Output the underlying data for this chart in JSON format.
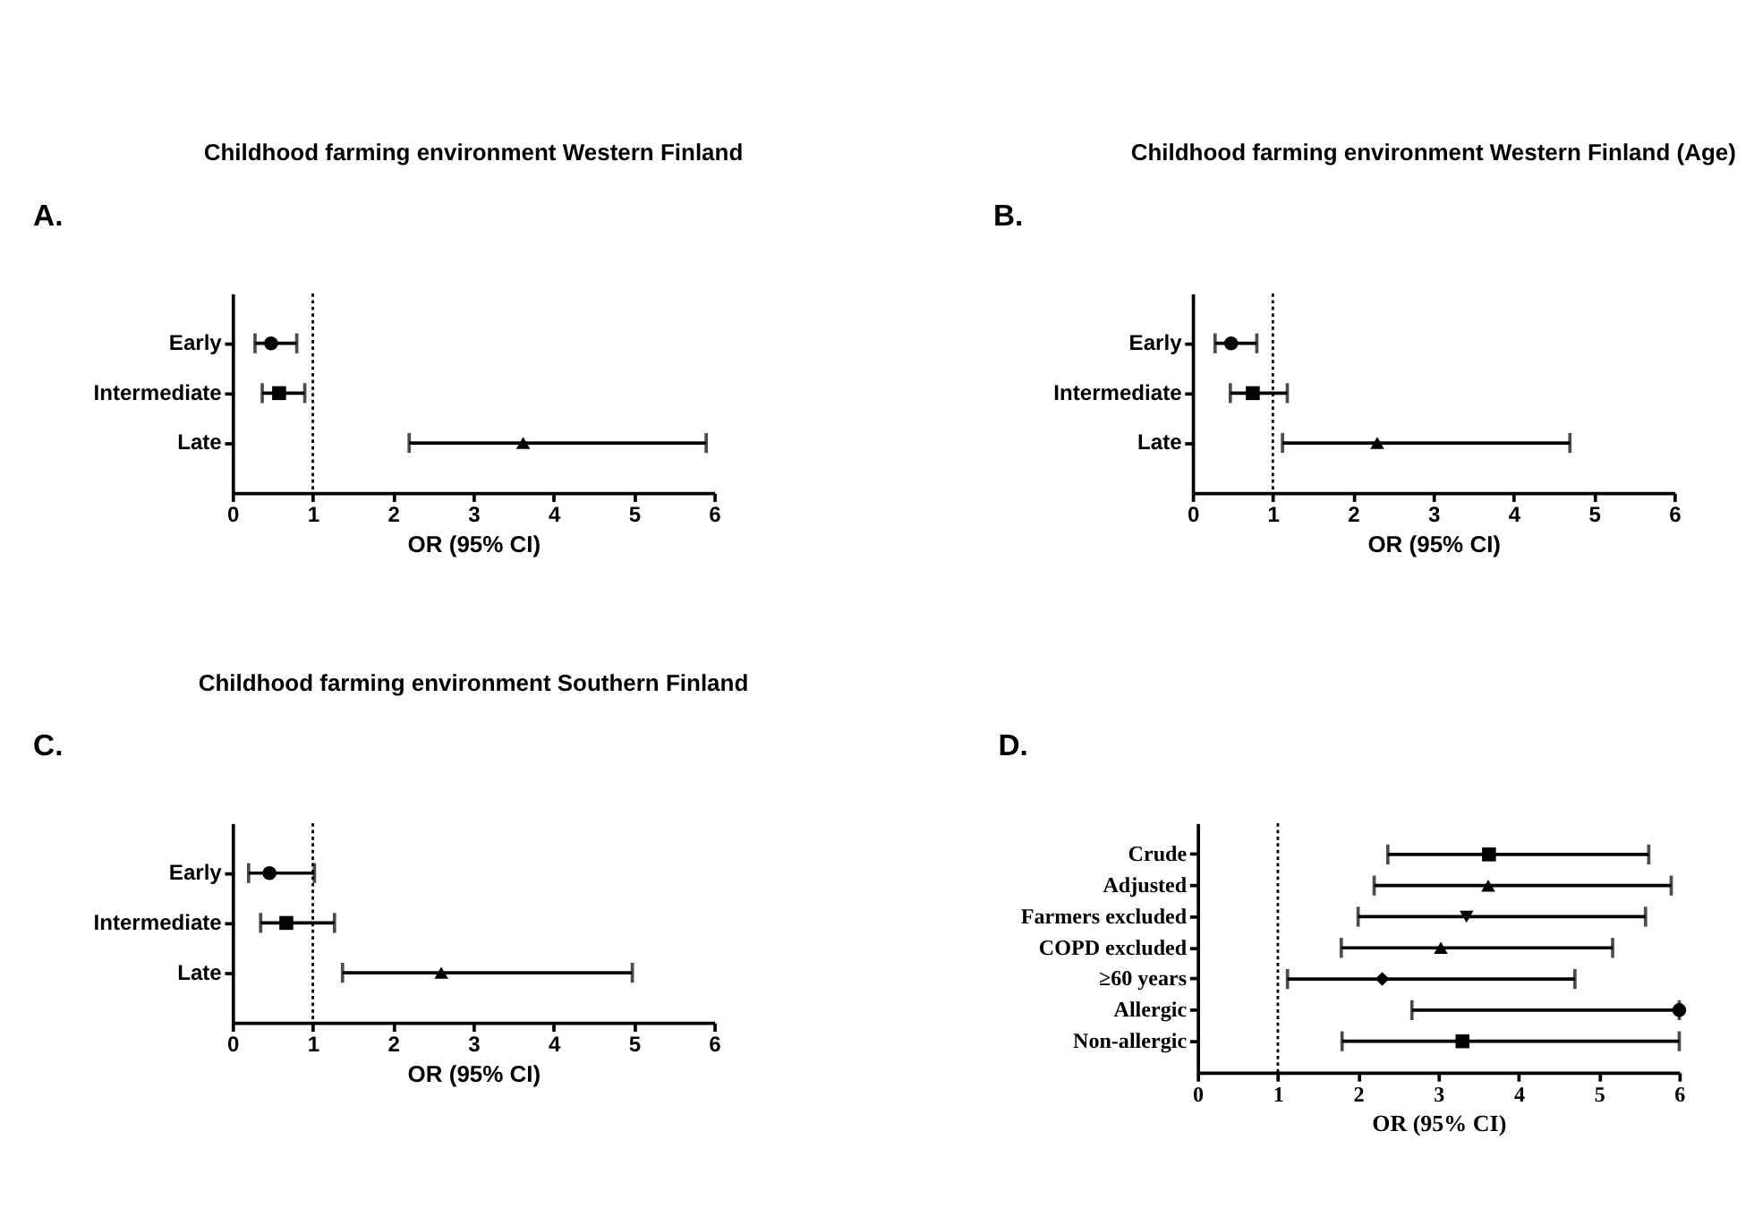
{
  "chart_data": [
    {
      "type": "scatter",
      "orientation": "horizontal",
      "title": "Childhood farming environment Western Finland",
      "xlabel": "OR (95% CI)",
      "annotations": [
        "A."
      ],
      "categories": [
        "Early",
        "Intermediate",
        "Late"
      ],
      "xlim": [
        0,
        6
      ],
      "xticks": [
        0,
        1,
        2,
        3,
        4,
        5,
        6
      ],
      "grid": false,
      "legend": false,
      "ref_lines": [
        {
          "axis": "x",
          "value": 1,
          "line_style": "dotted",
          "color": "#000000"
        }
      ],
      "series": [
        {
          "color": "#000000",
          "marker": "circle",
          "values": [
            0.48,
            null,
            null
          ],
          "errors": [
            [
              0.28,
              0.8
            ],
            null,
            null
          ]
        },
        {
          "color": "#000000",
          "marker": "square",
          "values": [
            null,
            0.58,
            null
          ],
          "errors": [
            null,
            [
              0.37,
              0.9
            ],
            null
          ]
        },
        {
          "color": "#000000",
          "marker": "triangle",
          "values": [
            null,
            null,
            3.62
          ],
          "errors": [
            null,
            null,
            [
              2.2,
              5.9
            ]
          ]
        }
      ]
    },
    {
      "type": "scatter",
      "orientation": "horizontal",
      "title": "Childhood farming environment Western Finland (Age)",
      "xlabel": "OR (95% CI)",
      "annotations": [
        "B."
      ],
      "categories": [
        "Early",
        "Intermediate",
        "Late"
      ],
      "xlim": [
        0,
        6
      ],
      "xticks": [
        0,
        1,
        2,
        3,
        4,
        5,
        6
      ],
      "grid": false,
      "legend": false,
      "ref_lines": [
        {
          "axis": "x",
          "value": 1,
          "line_style": "dotted",
          "color": "#000000"
        }
      ],
      "series": [
        {
          "color": "#000000",
          "marker": "circle",
          "values": [
            0.48,
            null,
            null
          ],
          "errors": [
            [
              0.28,
              0.8
            ],
            null,
            null
          ]
        },
        {
          "color": "#000000",
          "marker": "square",
          "values": [
            null,
            0.75,
            null
          ],
          "errors": [
            null,
            [
              0.47,
              1.18
            ],
            null
          ]
        },
        {
          "color": "#000000",
          "marker": "triangle",
          "values": [
            null,
            null,
            2.3
          ],
          "errors": [
            null,
            null,
            [
              1.12,
              4.7
            ]
          ]
        }
      ]
    },
    {
      "type": "scatter",
      "orientation": "horizontal",
      "title": "Childhood farming environment Southern Finland",
      "xlabel": "OR (95% CI)",
      "annotations": [
        "C."
      ],
      "categories": [
        "Early",
        "Intermediate",
        "Late"
      ],
      "xlim": [
        0,
        6
      ],
      "xticks": [
        0,
        1,
        2,
        3,
        4,
        5,
        6
      ],
      "grid": false,
      "legend": false,
      "ref_lines": [
        {
          "axis": "x",
          "value": 1,
          "line_style": "dotted",
          "color": "#000000"
        }
      ],
      "series": [
        {
          "color": "#000000",
          "marker": "circle",
          "values": [
            0.46,
            null,
            null
          ],
          "errors": [
            [
              0.2,
              1.02
            ],
            null,
            null
          ]
        },
        {
          "color": "#000000",
          "marker": "square",
          "values": [
            null,
            0.67,
            null
          ],
          "errors": [
            null,
            [
              0.35,
              1.27
            ],
            null
          ]
        },
        {
          "color": "#000000",
          "marker": "triangle",
          "values": [
            null,
            null,
            2.6
          ],
          "errors": [
            null,
            null,
            [
              1.37,
              4.98
            ]
          ]
        }
      ]
    },
    {
      "type": "scatter",
      "orientation": "horizontal",
      "xlabel": "OR (95% CI)",
      "annotations": [
        "D."
      ],
      "categories": [
        "Crude",
        "Adjusted",
        "Farmers excluded",
        "COPD excluded",
        "≥60 years",
        "Allergic",
        "Non-allergic"
      ],
      "xlim": [
        0,
        6
      ],
      "xticks": [
        0,
        1,
        2,
        3,
        4,
        5,
        6
      ],
      "grid": false,
      "legend": false,
      "ref_lines": [
        {
          "axis": "x",
          "value": 1,
          "line_style": "dotted",
          "color": "#000000"
        }
      ],
      "series": [
        {
          "color": "#000000",
          "marker": "square",
          "values": [
            3.63,
            null,
            null,
            null,
            null,
            null,
            null
          ],
          "errors": [
            [
              2.37,
              5.62
            ],
            null,
            null,
            null,
            null,
            null,
            null
          ]
        },
        {
          "color": "#000000",
          "marker": "triangle",
          "values": [
            null,
            3.62,
            null,
            null,
            null,
            null,
            null
          ],
          "errors": [
            null,
            [
              2.2,
              5.9
            ],
            null,
            null,
            null,
            null,
            null
          ]
        },
        {
          "color": "#000000",
          "marker": "triangle-down",
          "values": [
            null,
            null,
            3.35,
            null,
            null,
            null,
            null
          ],
          "errors": [
            null,
            null,
            [
              2.0,
              5.58
            ],
            null,
            null,
            null,
            null
          ]
        },
        {
          "color": "#000000",
          "marker": "triangle",
          "values": [
            null,
            null,
            null,
            3.03,
            null,
            null,
            null
          ],
          "errors": [
            null,
            null,
            null,
            [
              1.79,
              5.17
            ],
            null,
            null,
            null
          ]
        },
        {
          "color": "#000000",
          "marker": "diamond",
          "values": [
            null,
            null,
            null,
            null,
            2.3,
            null,
            null
          ],
          "errors": [
            null,
            null,
            null,
            null,
            [
              1.12,
              4.7
            ],
            null,
            null
          ]
        },
        {
          "color": "#000000",
          "marker": "circle",
          "values": [
            null,
            null,
            null,
            null,
            null,
            6.0,
            null
          ],
          "errors": [
            null,
            null,
            null,
            null,
            null,
            [
              2.67,
              6.0
            ],
            null
          ]
        },
        {
          "color": "#000000",
          "marker": "square",
          "values": [
            null,
            null,
            null,
            null,
            null,
            null,
            3.3
          ],
          "errors": [
            null,
            null,
            null,
            null,
            null,
            null,
            [
              1.8,
              6.0
            ]
          ]
        }
      ]
    }
  ]
}
